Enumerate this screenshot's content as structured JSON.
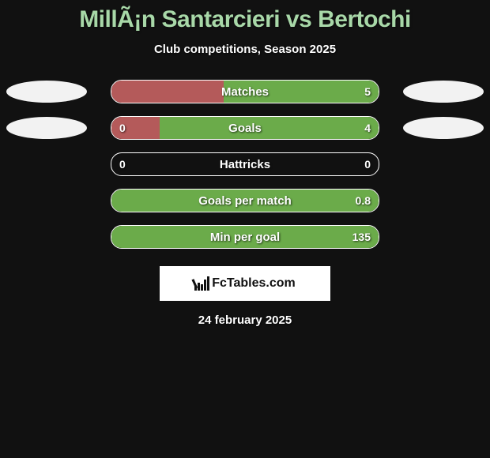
{
  "title": "MillÃ¡n Santarcieri vs Bertochi",
  "subtitle": "Club competitions, Season 2025",
  "date": "24 february 2025",
  "logo_text": "FcTables.com",
  "background_color": "#111111",
  "title_color": "#a8d8a8",
  "text_color": "#ffffff",
  "ellipse_left_color": "#f2f2f2",
  "ellipse_right_color": "#f2f2f2",
  "fill_left_color": "#b45a5a",
  "fill_right_color": "#6bab4a",
  "rows": [
    {
      "label": "Matches",
      "left_val": "",
      "right_val": "5",
      "left_pct": 42,
      "right_pct": 58,
      "show_ellipses": true,
      "show_left_val": false
    },
    {
      "label": "Goals",
      "left_val": "0",
      "right_val": "4",
      "left_pct": 18,
      "right_pct": 82,
      "show_ellipses": true,
      "show_left_val": true
    },
    {
      "label": "Hattricks",
      "left_val": "0",
      "right_val": "0",
      "left_pct": 0,
      "right_pct": 0,
      "show_ellipses": false,
      "show_left_val": true
    },
    {
      "label": "Goals per match",
      "left_val": "",
      "right_val": "0.8",
      "left_pct": 0,
      "right_pct": 100,
      "show_ellipses": false,
      "show_left_val": false
    },
    {
      "label": "Min per goal",
      "left_val": "",
      "right_val": "135",
      "left_pct": 0,
      "right_pct": 100,
      "show_ellipses": false,
      "show_left_val": false
    }
  ]
}
